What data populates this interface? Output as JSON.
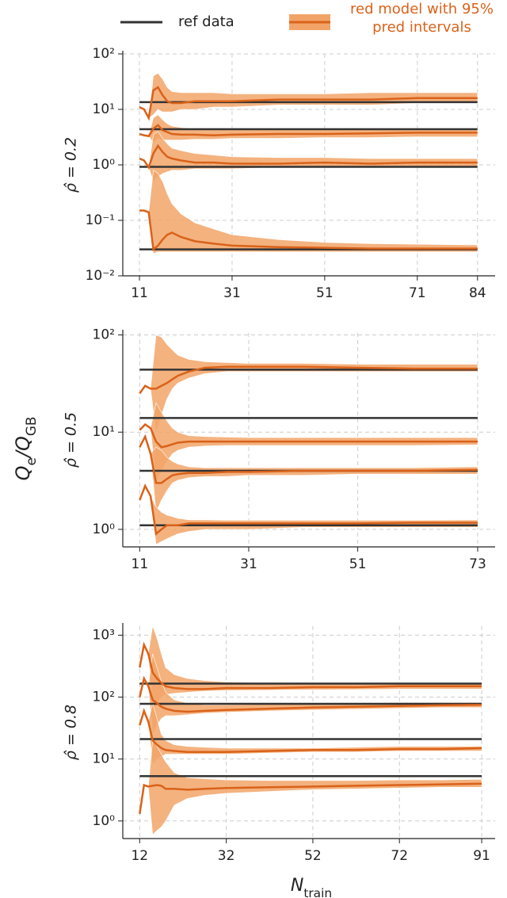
{
  "legend": [
    "ref data",
    "red model with 95% pred intervals"
  ],
  "ylabel": [
    {
      "t": "Q"
    },
    {
      "t": "e",
      "sub": true
    },
    {
      "t": "/Q"
    },
    {
      "t": "GB",
      "sub": true
    }
  ],
  "xlabel": [
    {
      "t": "N"
    },
    {
      "t": "train",
      "sub": true
    }
  ],
  "ref_color": "#333333",
  "model_color": "#d9621a",
  "band_color": "#f2a468",
  "log_y": true,
  "grid": true,
  "chart_data": [
    {
      "type": "line",
      "ylabel": "ρ̂ = 0.2",
      "xlim": [
        7.4,
        87.8
      ],
      "ylim": [
        0.01,
        100
      ],
      "xticks": [
        11,
        31,
        51,
        71,
        84
      ],
      "yticks": [
        {
          "value": 0.01,
          "label": "10⁻²"
        },
        {
          "value": 0.1,
          "label": "10⁻¹"
        },
        {
          "value": 1,
          "label": "10⁰"
        },
        {
          "value": 10,
          "label": "10¹"
        },
        {
          "value": 100,
          "label": "10²"
        }
      ],
      "refs": [
        13.5,
        4.4,
        0.92,
        0.03
      ],
      "x": [
        11,
        12,
        13,
        14,
        15,
        16,
        17,
        18,
        20,
        23,
        27,
        31,
        41,
        51,
        61,
        71,
        84
      ],
      "series": [
        {
          "values": [
            11,
            10,
            7,
            22,
            25,
            18,
            14,
            13,
            13,
            14,
            14,
            14,
            15,
            15,
            15,
            16,
            16
          ],
          "lower": [
            11,
            10,
            7,
            8,
            10,
            9,
            9,
            9,
            10,
            10,
            11,
            11,
            12,
            12,
            12,
            13,
            13
          ],
          "upper": [
            11,
            10,
            7,
            40,
            45,
            35,
            25,
            21,
            20,
            20,
            20,
            19,
            19,
            19,
            20,
            20,
            20
          ]
        },
        {
          "values": [
            3.6,
            3.4,
            3.3,
            4.5,
            5.2,
            4.2,
            3.9,
            3.6,
            3.5,
            3.5,
            3.4,
            3.5,
            3.6,
            3.6,
            3.7,
            3.8,
            3.8
          ],
          "lower": [
            3.6,
            3.4,
            3.3,
            2.5,
            3,
            2.8,
            2.8,
            2.8,
            2.8,
            2.9,
            2.9,
            3,
            3,
            3.1,
            3.1,
            3.2,
            3.2
          ],
          "upper": [
            3.6,
            3.4,
            3.3,
            7,
            8,
            6.5,
            5.5,
            5,
            4.7,
            4.5,
            4.4,
            4.4,
            4.4,
            4.4,
            4.5,
            4.5,
            4.5
          ]
        },
        {
          "values": [
            1.3,
            1.2,
            0.9,
            1.6,
            2.2,
            1.7,
            1.4,
            1.3,
            1.2,
            1.1,
            1.1,
            1.05,
            1.05,
            1.1,
            1.05,
            1.1,
            1.1
          ],
          "lower": [
            1.3,
            1.2,
            0.9,
            0.5,
            0.6,
            0.7,
            0.75,
            0.8,
            0.8,
            0.85,
            0.85,
            0.85,
            0.9,
            0.9,
            0.9,
            0.9,
            0.9
          ],
          "upper": [
            1.3,
            1.2,
            0.9,
            3.5,
            4,
            3,
            2.4,
            2,
            1.8,
            1.6,
            1.5,
            1.4,
            1.35,
            1.35,
            1.3,
            1.3,
            1.3
          ]
        },
        {
          "values": [
            0.15,
            0.15,
            0.14,
            0.03,
            0.035,
            0.045,
            0.055,
            0.06,
            0.05,
            0.042,
            0.038,
            0.035,
            0.033,
            0.032,
            0.031,
            0.031,
            0.031
          ],
          "lower": [
            0.15,
            0.15,
            0.14,
            0.025,
            0.027,
            0.027,
            0.027,
            0.027,
            0.027,
            0.027,
            0.027,
            0.027,
            0.027,
            0.027,
            0.027,
            0.027,
            0.027
          ],
          "upper": [
            0.15,
            0.15,
            0.14,
            0.8,
            0.7,
            0.5,
            0.3,
            0.2,
            0.13,
            0.09,
            0.07,
            0.055,
            0.045,
            0.04,
            0.038,
            0.037,
            0.036
          ]
        }
      ]
    },
    {
      "type": "line",
      "ylabel": "ρ̂ = 0.5",
      "xlim": [
        7.9,
        76.2
      ],
      "ylim": [
        0.66,
        105
      ],
      "xticks": [
        11,
        31,
        51,
        73
      ],
      "yticks": [
        {
          "value": 1,
          "label": "10⁰"
        },
        {
          "value": 10,
          "label": "10¹"
        },
        {
          "value": 100,
          "label": "10²"
        }
      ],
      "refs": [
        44,
        14,
        4.0,
        1.1
      ],
      "x": [
        11,
        12,
        13,
        14,
        15,
        16,
        17,
        18,
        20,
        23,
        27,
        31,
        41,
        51,
        61,
        73
      ],
      "series": [
        {
          "values": [
            25,
            30,
            28,
            28,
            30,
            32,
            35,
            38,
            42,
            46,
            47,
            47,
            47,
            46,
            45,
            45
          ],
          "lower": [
            25,
            30,
            28,
            10,
            15,
            22,
            28,
            32,
            36,
            40,
            42,
            42,
            42,
            42,
            42,
            42
          ],
          "upper": [
            25,
            30,
            28,
            100,
            95,
            80,
            70,
            62,
            56,
            53,
            52,
            51,
            51,
            50,
            50,
            50
          ]
        },
        {
          "values": [
            10.5,
            12,
            11,
            8,
            7,
            7.2,
            7.5,
            7.8,
            8,
            8,
            8,
            8,
            8,
            8,
            8,
            8
          ],
          "lower": [
            10.5,
            12,
            11,
            3,
            4,
            5,
            6,
            6.5,
            7,
            7.2,
            7.3,
            7.3,
            7.3,
            7.3,
            7.3,
            7.4
          ],
          "upper": [
            10.5,
            12,
            11,
            20,
            16,
            13,
            11,
            10,
            9.2,
            9,
            8.9,
            8.8,
            8.8,
            8.8,
            8.8,
            8.8
          ]
        },
        {
          "values": [
            7,
            9,
            6,
            3,
            3,
            3.3,
            3.6,
            3.7,
            3.8,
            3.8,
            3.9,
            3.9,
            4,
            4,
            4,
            4.1
          ],
          "lower": [
            7,
            9,
            6,
            1.5,
            2,
            2.5,
            3,
            3.2,
            3.4,
            3.5,
            3.5,
            3.6,
            3.6,
            3.7,
            3.7,
            3.7
          ],
          "upper": [
            7,
            9,
            6,
            7,
            6.5,
            5.5,
            5,
            4.7,
            4.4,
            4.3,
            4.3,
            4.3,
            4.3,
            4.3,
            4.3,
            4.4
          ]
        },
        {
          "values": [
            2,
            2.8,
            2.2,
            0.9,
            1,
            1.1,
            1.1,
            1.1,
            1.15,
            1.15,
            1.15,
            1.15,
            1.15,
            1.15,
            1.17,
            1.17
          ],
          "lower": [
            2,
            2.8,
            2.2,
            0.7,
            0.75,
            0.8,
            0.85,
            0.9,
            0.95,
            1,
            1,
            1,
            1.05,
            1.05,
            1.05,
            1.05
          ],
          "upper": [
            2,
            2.8,
            2.2,
            1.7,
            1.5,
            1.4,
            1.35,
            1.3,
            1.25,
            1.25,
            1.24,
            1.24,
            1.24,
            1.24,
            1.24,
            1.25
          ]
        }
      ]
    },
    {
      "type": "line",
      "ylabel": "ρ̂ = 0.8",
      "xlim": [
        8.1,
        94.1
      ],
      "ylim": [
        0.52,
        1400
      ],
      "xticks": [
        12,
        32,
        52,
        72,
        91
      ],
      "yticks": [
        {
          "value": 1,
          "label": "10⁰"
        },
        {
          "value": 10,
          "label": "10¹"
        },
        {
          "value": 100,
          "label": "10²"
        },
        {
          "value": 1000,
          "label": "10³"
        }
      ],
      "refs": [
        165,
        78,
        21,
        5.3
      ],
      "x": [
        12,
        13,
        14,
        15,
        16,
        17,
        18,
        20,
        23,
        27,
        32,
        42,
        52,
        62,
        72,
        82,
        91
      ],
      "series": [
        {
          "values": [
            300,
            700,
            500,
            250,
            200,
            170,
            150,
            140,
            135,
            135,
            140,
            140,
            145,
            145,
            150,
            150,
            150
          ],
          "lower": [
            300,
            700,
            500,
            60,
            80,
            100,
            110,
            115,
            120,
            125,
            128,
            130,
            132,
            133,
            135,
            135,
            135
          ],
          "upper": [
            300,
            700,
            500,
            1400,
            900,
            500,
            300,
            230,
            200,
            185,
            175,
            170,
            170,
            170,
            170,
            170,
            170
          ]
        },
        {
          "values": [
            100,
            200,
            150,
            90,
            80,
            70,
            65,
            60,
            58,
            60,
            62,
            65,
            68,
            70,
            72,
            74,
            75
          ],
          "lower": [
            100,
            200,
            150,
            25,
            35,
            45,
            50,
            50,
            52,
            55,
            57,
            60,
            62,
            64,
            66,
            68,
            68
          ],
          "upper": [
            100,
            200,
            150,
            500,
            300,
            180,
            120,
            90,
            80,
            75,
            75,
            77,
            78,
            80,
            82,
            82,
            82
          ]
        },
        {
          "values": [
            35,
            60,
            40,
            20,
            17,
            15,
            14,
            13.5,
            13,
            13,
            13,
            13.5,
            14,
            14,
            14.5,
            14.5,
            15
          ],
          "lower": [
            35,
            60,
            40,
            8,
            10,
            11,
            12,
            12,
            12,
            12,
            12,
            12.5,
            13,
            13,
            13.5,
            13.5,
            13.5
          ],
          "upper": [
            35,
            60,
            40,
            80,
            45,
            25,
            20,
            17,
            16,
            15.5,
            15,
            15,
            15,
            15.5,
            16,
            16,
            16
          ]
        },
        {
          "values": [
            1.3,
            3.8,
            3.6,
            3.7,
            3.8,
            3.7,
            3.3,
            3.3,
            3.2,
            3.3,
            3.4,
            3.5,
            3.6,
            3.7,
            3.8,
            3.9,
            4
          ],
          "lower": [
            1.3,
            3.8,
            3.6,
            0.6,
            0.7,
            0.8,
            1,
            1.8,
            2.3,
            2.6,
            2.8,
            3,
            3.2,
            3.3,
            3.4,
            3.5,
            3.5
          ],
          "upper": [
            1.3,
            3.8,
            3.6,
            20,
            16,
            12,
            9,
            6,
            5,
            4.8,
            4.6,
            4.5,
            4.5,
            4.5,
            4.6,
            4.6,
            4.7
          ]
        }
      ]
    }
  ]
}
